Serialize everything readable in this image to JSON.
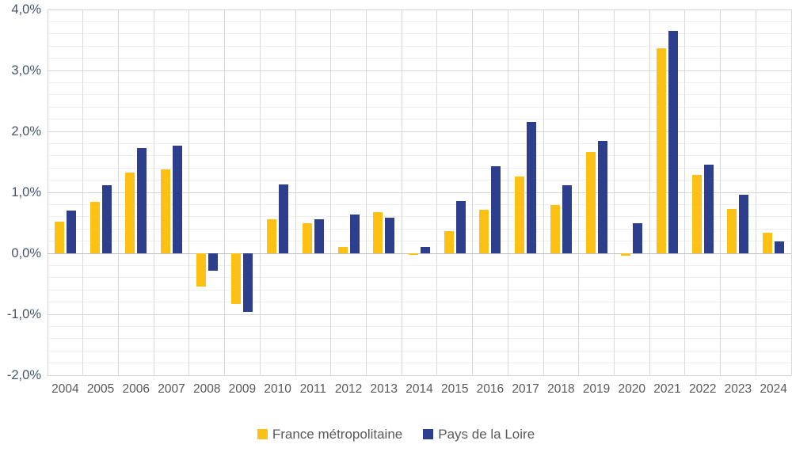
{
  "chart_data": {
    "type": "bar",
    "title": "",
    "xlabel": "",
    "ylabel": "",
    "categories": [
      "2004",
      "2005",
      "2006",
      "2007",
      "2008",
      "2009",
      "2010",
      "2011",
      "2012",
      "2013",
      "2014",
      "2015",
      "2016",
      "2017",
      "2018",
      "2019",
      "2020",
      "2021",
      "2022",
      "2023",
      "2024"
    ],
    "series": [
      {
        "name": "France métropolitaine",
        "color": "#FDC116",
        "values": [
          0.52,
          0.84,
          1.33,
          1.38,
          -0.54,
          -0.83,
          0.56,
          0.5,
          0.11,
          0.67,
          -0.02,
          0.36,
          0.71,
          1.26,
          0.79,
          1.66,
          -0.04,
          3.37,
          1.28,
          0.73,
          0.34
        ]
      },
      {
        "name": "Pays de la Loire",
        "color": "#2D3E8C",
        "values": [
          0.7,
          1.12,
          1.73,
          1.77,
          -0.28,
          -0.96,
          1.13,
          0.56,
          0.63,
          0.58,
          0.1,
          0.86,
          1.43,
          2.15,
          1.12,
          1.85,
          0.49,
          3.65,
          1.45,
          0.96,
          0.2
        ]
      }
    ],
    "ylim": [
      -2,
      4
    ],
    "y_major_step": 1.0,
    "y_minor_step": 0.2,
    "y_tick_labels": [
      "4,0%",
      "3,0%",
      "2,0%",
      "1,0%",
      "0,0%",
      "-1,0%",
      "-2,0%"
    ],
    "y_tick_values": [
      4,
      3,
      2,
      1,
      0,
      -1,
      -2
    ],
    "grid": "on",
    "legend_position": "bottom"
  },
  "style_colors": {
    "minor_gridline": "#EFEFEF",
    "major_gridline": "#D6D6D6",
    "vertical_gridline": "#D9D9D9",
    "zero_axis_line": "#BFBFBF",
    "y_label_color": "#44546A",
    "x_label_color": "#595959",
    "legend_text_color": "#595959",
    "background": "#FFFFFF"
  }
}
